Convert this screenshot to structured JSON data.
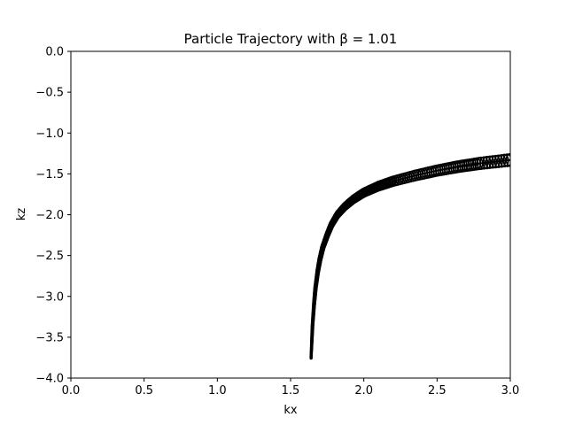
{
  "chart_data": {
    "type": "line",
    "title": "Particle Trajectory with β = 1.01",
    "xlabel": "kx",
    "ylabel": "kz",
    "xlim": [
      0.0,
      3.0
    ],
    "ylim": [
      -4.0,
      0.0
    ],
    "xticks": [
      "0.0",
      "0.5",
      "1.0",
      "1.5",
      "2.0",
      "2.5",
      "3.0"
    ],
    "yticks": [
      "0.0",
      "−0.5",
      "−1.0",
      "−1.5",
      "−2.0",
      "−2.5",
      "−3.0",
      "−3.5",
      "−4.0"
    ],
    "grid": false,
    "series": [
      {
        "color": "#000000",
        "x": [
          1.64,
          1.645,
          1.65,
          1.66,
          1.67,
          1.685,
          1.7,
          1.72,
          1.75,
          1.78,
          1.82,
          1.87,
          1.93,
          2.0,
          2.1,
          2.2,
          2.35,
          2.5,
          2.65,
          2.8,
          3.0
        ],
        "y": [
          -3.75,
          -3.55,
          -3.35,
          -3.1,
          -2.9,
          -2.7,
          -2.55,
          -2.4,
          -2.25,
          -2.12,
          -2.0,
          -1.9,
          -1.81,
          -1.73,
          -1.65,
          -1.59,
          -1.52,
          -1.46,
          -1.41,
          -1.37,
          -1.33
        ]
      }
    ]
  }
}
